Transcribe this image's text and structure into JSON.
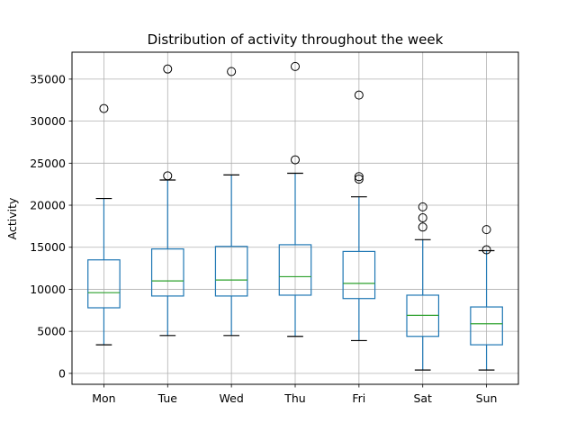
{
  "chart_data": {
    "type": "box",
    "title": "Distribution of activity throughout the week",
    "ylabel": "Activity",
    "xlabel": "",
    "ylim": [
      -1300,
      38200
    ],
    "yticks": [
      0,
      5000,
      10000,
      15000,
      20000,
      25000,
      30000,
      35000
    ],
    "grid": true,
    "box_color": "#1f77b4",
    "median_color": "#2ca02c",
    "categories": [
      "Mon",
      "Tue",
      "Wed",
      "Thu",
      "Fri",
      "Sat",
      "Sun"
    ],
    "boxes": [
      {
        "whisker_low": 3400,
        "q1": 7800,
        "median": 9600,
        "q3": 13500,
        "whisker_high": 20800,
        "outliers": [
          31500
        ]
      },
      {
        "whisker_low": 4500,
        "q1": 9200,
        "median": 11000,
        "q3": 14800,
        "whisker_high": 23000,
        "outliers": [
          23500,
          36200
        ]
      },
      {
        "whisker_low": 4500,
        "q1": 9200,
        "median": 11100,
        "q3": 15100,
        "whisker_high": 23600,
        "outliers": [
          35900
        ]
      },
      {
        "whisker_low": 4400,
        "q1": 9300,
        "median": 11500,
        "q3": 15300,
        "whisker_high": 23800,
        "outliers": [
          25400,
          36500
        ]
      },
      {
        "whisker_low": 3900,
        "q1": 8900,
        "median": 10700,
        "q3": 14500,
        "whisker_high": 21000,
        "outliers": [
          23100,
          23400,
          33100
        ]
      },
      {
        "whisker_low": 400,
        "q1": 4400,
        "median": 6900,
        "q3": 9300,
        "whisker_high": 15900,
        "outliers": [
          17400,
          18500,
          19800
        ]
      },
      {
        "whisker_low": 400,
        "q1": 3400,
        "median": 5900,
        "q3": 7900,
        "whisker_high": 14600,
        "outliers": [
          14700,
          17100
        ]
      }
    ]
  }
}
